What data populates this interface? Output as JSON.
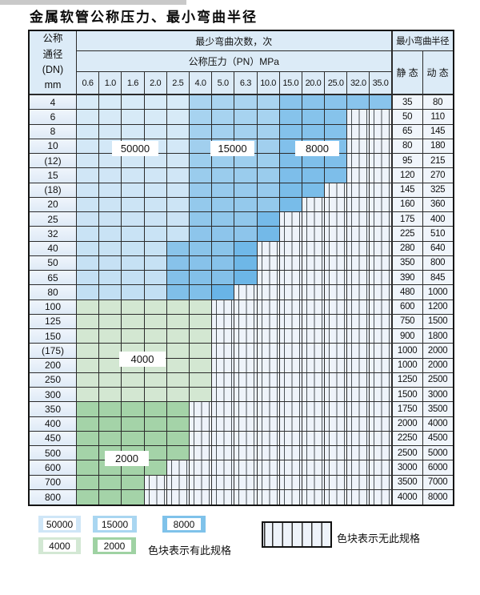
{
  "page": {
    "title": "金属软管公称压力、最小弯曲半径"
  },
  "table": {
    "corner_header": {
      "lines": [
        "公称",
        "通径",
        "(DN)",
        "mm"
      ]
    },
    "top_header": "最少弯曲次数，次",
    "pressure_header": "公称压力（PN）MPa",
    "radius_header": "最小弯曲半径",
    "static_header": "静 态",
    "dynamic_header": "动 态",
    "pressure_columns": [
      "0.6",
      "1.0",
      "1.6",
      "2.0",
      "2.5",
      "4.0",
      "5.0",
      "6.3",
      "10.0",
      "15.0",
      "20.0",
      "25.0",
      "32.0",
      "35.0"
    ],
    "rows": [
      {
        "dn": "4",
        "static": "35",
        "dynamic": "80",
        "colored": 14,
        "light": 5,
        "medium": 4,
        "zone": "blue"
      },
      {
        "dn": "6",
        "static": "50",
        "dynamic": "110",
        "colored": 12,
        "light": 5,
        "medium": 4,
        "zone": "blue"
      },
      {
        "dn": "8",
        "static": "65",
        "dynamic": "145",
        "colored": 12,
        "light": 5,
        "medium": 4,
        "zone": "blue"
      },
      {
        "dn": "10",
        "static": "80",
        "dynamic": "180",
        "colored": 12,
        "light": 5,
        "medium": 4,
        "zone": "blue"
      },
      {
        "dn": "(12)",
        "static": "95",
        "dynamic": "215",
        "colored": 12,
        "light": 5,
        "medium": 4,
        "zone": "blue"
      },
      {
        "dn": "15",
        "static": "120",
        "dynamic": "270",
        "colored": 12,
        "light": 5,
        "medium": 4,
        "zone": "blue"
      },
      {
        "dn": "(18)",
        "static": "145",
        "dynamic": "325",
        "colored": 11,
        "light": 5,
        "medium": 4,
        "zone": "blue"
      },
      {
        "dn": "20",
        "static": "160",
        "dynamic": "360",
        "colored": 10,
        "light": 5,
        "medium": 4,
        "zone": "blue"
      },
      {
        "dn": "25",
        "static": "175",
        "dynamic": "400",
        "colored": 9,
        "light": 5,
        "medium": 3,
        "zone": "blue"
      },
      {
        "dn": "32",
        "static": "225",
        "dynamic": "510",
        "colored": 9,
        "light": 5,
        "medium": 3,
        "zone": "blue"
      },
      {
        "dn": "40",
        "static": "280",
        "dynamic": "640",
        "colored": 8,
        "light": 4,
        "medium": 3,
        "zone": "blue"
      },
      {
        "dn": "50",
        "static": "350",
        "dynamic": "800",
        "colored": 8,
        "light": 4,
        "medium": 3,
        "zone": "blue"
      },
      {
        "dn": "65",
        "static": "390",
        "dynamic": "845",
        "colored": 8,
        "light": 4,
        "medium": 3,
        "zone": "blue"
      },
      {
        "dn": "80",
        "static": "480",
        "dynamic": "1000",
        "colored": 7,
        "light": 4,
        "medium": 2,
        "zone": "blue"
      },
      {
        "dn": "100",
        "static": "600",
        "dynamic": "1200",
        "colored": 6,
        "zone": "green-light"
      },
      {
        "dn": "125",
        "static": "750",
        "dynamic": "1500",
        "colored": 6,
        "zone": "green-light"
      },
      {
        "dn": "150",
        "static": "900",
        "dynamic": "1800",
        "colored": 6,
        "zone": "green-light"
      },
      {
        "dn": "(175)",
        "static": "1000",
        "dynamic": "2000",
        "colored": 6,
        "zone": "green-light"
      },
      {
        "dn": "200",
        "static": "1000",
        "dynamic": "2000",
        "colored": 6,
        "zone": "green-light"
      },
      {
        "dn": "250",
        "static": "1250",
        "dynamic": "2500",
        "colored": 6,
        "zone": "green-light"
      },
      {
        "dn": "300",
        "static": "1500",
        "dynamic": "3000",
        "colored": 6,
        "zone": "green-light"
      },
      {
        "dn": "350",
        "static": "1750",
        "dynamic": "3500",
        "colored": 5,
        "zone": "green-dark"
      },
      {
        "dn": "400",
        "static": "2000",
        "dynamic": "4000",
        "colored": 5,
        "zone": "green-dark"
      },
      {
        "dn": "450",
        "static": "2250",
        "dynamic": "4500",
        "colored": 5,
        "zone": "green-dark"
      },
      {
        "dn": "500",
        "static": "2500",
        "dynamic": "5000",
        "colored": 5,
        "zone": "green-dark"
      },
      {
        "dn": "600",
        "static": "3000",
        "dynamic": "6000",
        "colored": 4,
        "zone": "green-dark"
      },
      {
        "dn": "700",
        "static": "3500",
        "dynamic": "7000",
        "colored": 3,
        "zone": "green-dark"
      },
      {
        "dn": "800",
        "static": "4000",
        "dynamic": "8000",
        "colored": 3,
        "zone": "green-dark"
      }
    ]
  },
  "labels": {
    "l50000": "50000",
    "l15000": "15000",
    "l8000": "8000",
    "l4000": "4000",
    "l2000": "2000"
  },
  "legend": {
    "swatches": [
      {
        "label": "50000",
        "zone": "blue-light",
        "color": "#cfe6f7"
      },
      {
        "label": "15000",
        "zone": "blue-medium",
        "color": "#a9d6f1"
      },
      {
        "label": "8000",
        "zone": "blue-dark",
        "color": "#7fc2ea"
      },
      {
        "label": "4000",
        "zone": "green-light",
        "color": "#d3e8d4"
      },
      {
        "label": "2000",
        "zone": "green-dark",
        "color": "#9fd2a3"
      }
    ],
    "has_spec_text": "色块表示有此规格",
    "no_spec_text": "色块表示无此规格"
  },
  "colors": {
    "blue_light": "#d6eaf8",
    "blue_medium": "#a9d6f1",
    "blue_dark": "#86c5ec",
    "green_light": "#d3e8d4",
    "green_dark": "#a3d4a7",
    "hatch_bg": "#eef3fa",
    "header_bg": "#dcebf7"
  }
}
